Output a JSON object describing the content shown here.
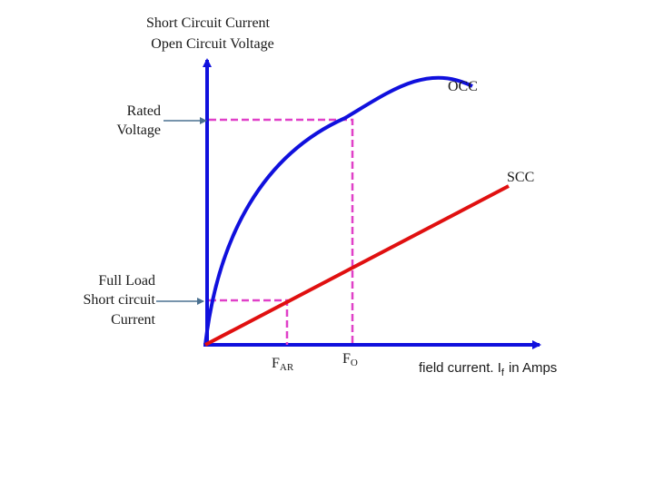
{
  "title_lines": [
    "Short Circuit Current",
    "Open Circuit Voltage"
  ],
  "curves": {
    "occ": "OCC",
    "scc": "SCC"
  },
  "y_labels": {
    "rated_voltage": [
      "Rated",
      "Voltage"
    ],
    "full_load": [
      "Full Load",
      "Short circuit",
      "Current"
    ]
  },
  "x_labels": {
    "far": {
      "main": "F",
      "sub": "AR"
    },
    "fo": {
      "main": "F",
      "sub": "O"
    },
    "axis": {
      "pre": "field current. I",
      "sub": "f",
      "post": "in Amps"
    }
  }
}
